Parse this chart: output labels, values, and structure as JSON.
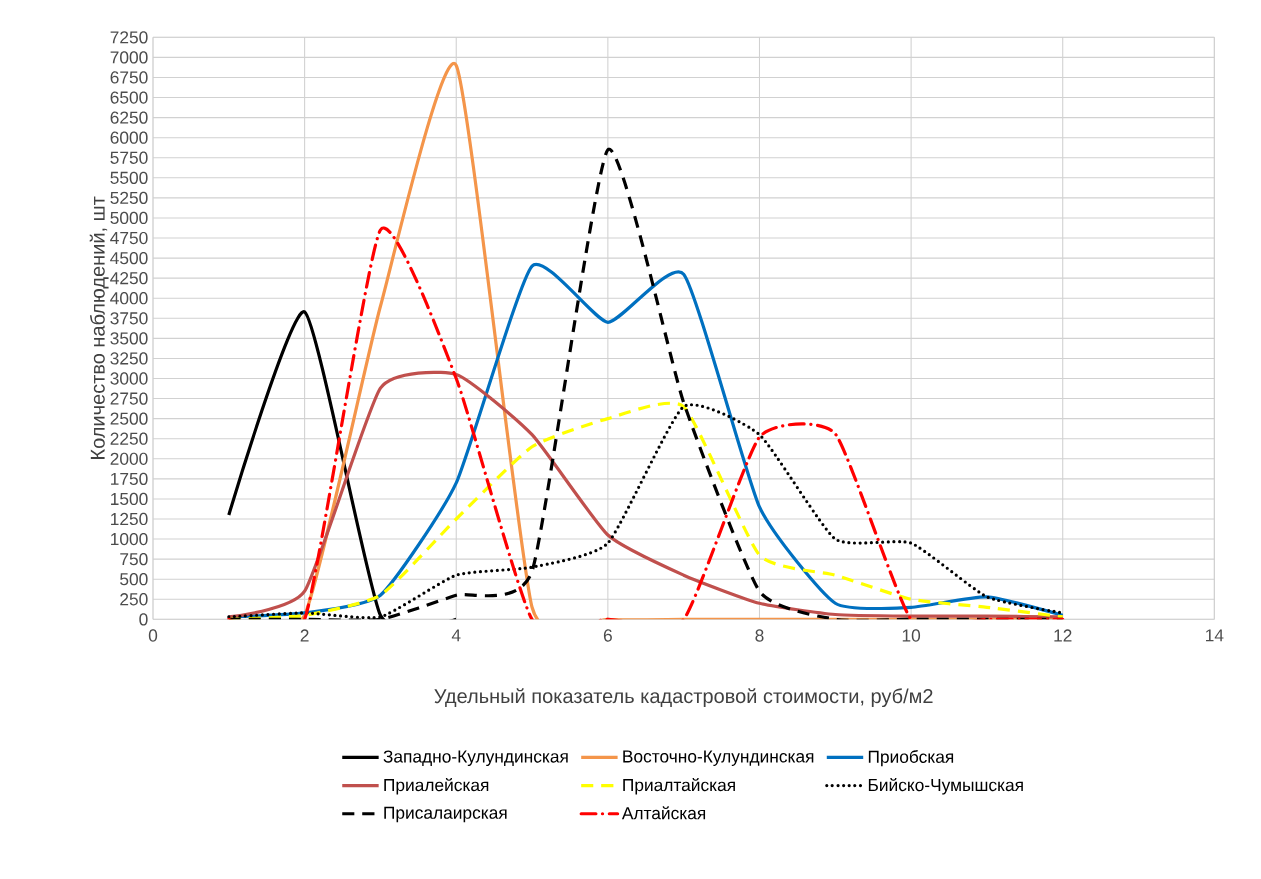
{
  "chart_data": {
    "type": "line",
    "xlabel": "Удельный показатель кадастровой стоимости, руб/м2",
    "ylabel": "Количество наблюдений, шт",
    "x": [
      1,
      2,
      3,
      4,
      5,
      6,
      7,
      8,
      9,
      10,
      11,
      12
    ],
    "xlim": [
      0,
      14
    ],
    "xticks": [
      0,
      2,
      4,
      6,
      8,
      10,
      12,
      14
    ],
    "ylim": [
      0,
      7250
    ],
    "yticks": [
      0,
      250,
      500,
      750,
      1000,
      1250,
      1500,
      1750,
      2000,
      2250,
      2500,
      2750,
      3000,
      3250,
      3500,
      3750,
      4000,
      4250,
      4500,
      4750,
      5000,
      5250,
      5500,
      5750,
      6000,
      6250,
      6500,
      6750,
      7000,
      7250
    ],
    "grid": true,
    "legend": "bottom",
    "marker": "none",
    "series": [
      {
        "name": "Западно-Кулундинская",
        "color": "#000000",
        "line_style": "solid",
        "x": [
          1,
          2,
          3,
          4
        ],
        "values": [
          1300,
          3830,
          50,
          0
        ]
      },
      {
        "name": "Восточно-Кулундинская",
        "color": "#f4954a",
        "line_style": "solid",
        "values": [
          0,
          50,
          3900,
          6900,
          150,
          0,
          0,
          0,
          0,
          0,
          0,
          0
        ]
      },
      {
        "name": "Приобская",
        "color": "#0070c0",
        "line_style": "solid",
        "values": [
          30,
          80,
          300,
          1700,
          4400,
          3700,
          4300,
          1400,
          200,
          150,
          280,
          50
        ]
      },
      {
        "name": "Приалейская",
        "color": "#c0504d",
        "line_style": "solid",
        "values": [
          30,
          350,
          2880,
          3050,
          2300,
          1050,
          550,
          200,
          60,
          40,
          40,
          30
        ]
      },
      {
        "name": "Приалтайская",
        "color": "#ffff00",
        "line_style": "dashed",
        "values": [
          0,
          50,
          300,
          1250,
          2150,
          2500,
          2650,
          800,
          550,
          250,
          150,
          30
        ]
      },
      {
        "name": "Бийско-Чумышская",
        "color": "#000000",
        "line_style": "dotted",
        "values": [
          30,
          80,
          30,
          550,
          650,
          950,
          2650,
          2300,
          1000,
          950,
          280,
          80
        ]
      },
      {
        "name": "Присалаирская",
        "color": "#000000",
        "line_style": "dashed",
        "values": [
          0,
          0,
          0,
          300,
          600,
          5850,
          2700,
          350,
          0,
          0,
          0,
          0
        ]
      },
      {
        "name": "Алтайская",
        "color": "#ff0000",
        "line_style": "dashdot",
        "values": [
          0,
          0,
          4850,
          3000,
          0,
          0,
          0,
          2270,
          2310,
          0,
          0,
          0
        ]
      }
    ]
  }
}
